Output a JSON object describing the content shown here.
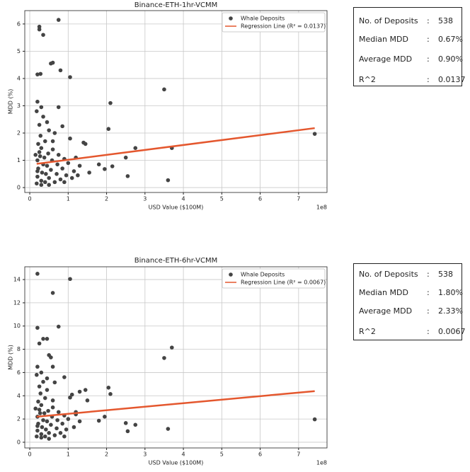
{
  "chart_data": [
    {
      "type": "scatter",
      "title": "Binance-ETH-1hr-VCMM",
      "xlabel": "USD Value ($100M)",
      "ylabel": "MDD (%)",
      "x_offset_label": "1e8",
      "xlim": [
        -0.13,
        7.74
      ],
      "ylim": [
        -0.18,
        6.49
      ],
      "xticks": [
        0,
        1,
        2,
        3,
        4,
        5,
        6,
        7
      ],
      "yticks": [
        0,
        1,
        2,
        3,
        4,
        5,
        6
      ],
      "grid": true,
      "legend": "upper right",
      "series": [
        {
          "name": "Whale Deposits",
          "kind": "scatter",
          "color": "#444444",
          "x": [
            0.75,
            0.25,
            0.25,
            0.35,
            0.55,
            0.6,
            0.8,
            1.05,
            0.2,
            0.28,
            3.5,
            0.2,
            2.1,
            0.3,
            0.75,
            2.05,
            0.5,
            0.85,
            0.65,
            1.4,
            1.45,
            1.05,
            2.5,
            2.75,
            3.7,
            7.42,
            3.6,
            2.55,
            2.15,
            1.95,
            1.8,
            1.25,
            1.55,
            1.1,
            0.18,
            0.2,
            0.22,
            0.2,
            0.25,
            0.22,
            0.28,
            0.3,
            0.32,
            0.35,
            0.38,
            0.3,
            0.4,
            0.42,
            0.45,
            0.48,
            0.4,
            0.5,
            0.55,
            0.58,
            0.6,
            0.65,
            0.7,
            0.72,
            0.75,
            0.8,
            0.85,
            0.9,
            0.95,
            1.0,
            0.25,
            0.35,
            0.45,
            0.18,
            0.6,
            0.3,
            0.5,
            0.2,
            0.27,
            0.15,
            1.2,
            1.3,
            1.15,
            0.9
          ],
          "values": [
            6.15,
            5.9,
            5.8,
            5.6,
            4.55,
            4.58,
            4.3,
            4.05,
            4.15,
            4.17,
            3.6,
            3.15,
            3.1,
            2.95,
            2.95,
            2.15,
            2.1,
            2.25,
            2.0,
            1.65,
            1.6,
            1.8,
            1.1,
            1.45,
            1.45,
            1.97,
            0.27,
            0.42,
            0.78,
            0.68,
            0.85,
            0.45,
            0.55,
            0.35,
            0.15,
            0.4,
            0.7,
            1.0,
            1.3,
            1.6,
            1.9,
            0.25,
            0.55,
            0.85,
            1.1,
            1.45,
            0.2,
            0.5,
            0.8,
            1.25,
            1.7,
            0.35,
            0.65,
            1.0,
            1.4,
            0.2,
            0.5,
            0.85,
            1.2,
            0.3,
            0.7,
            1.05,
            0.45,
            0.9,
            2.3,
            2.6,
            2.4,
            2.8,
            1.7,
            0.1,
            0.1,
            0.6,
            1.15,
            1.2,
            1.1,
            0.8,
            0.6,
            0.2
          ]
        },
        {
          "name": "Regression Line (R² = 0.0137)",
          "kind": "line",
          "color": "#e4572e",
          "x": [
            0.18,
            7.42
          ],
          "values": [
            0.87,
            2.18
          ]
        }
      ]
    },
    {
      "type": "scatter",
      "title": "Binance-ETH-6hr-VCMM",
      "xlabel": "USD Value ($100M)",
      "ylabel": "MDD (%)",
      "x_offset_label": "1e8",
      "xlim": [
        -0.13,
        7.74
      ],
      "ylim": [
        -0.49,
        15.1
      ],
      "xticks": [
        0,
        1,
        2,
        3,
        4,
        5,
        6,
        7
      ],
      "yticks": [
        0,
        2,
        4,
        6,
        8,
        10,
        12,
        14
      ],
      "grid": true,
      "legend": "upper right",
      "series": [
        {
          "name": "Whale Deposits",
          "kind": "scatter",
          "color": "#444444",
          "x": [
            0.2,
            1.05,
            0.6,
            0.2,
            0.75,
            3.7,
            3.5,
            0.25,
            0.35,
            0.45,
            0.5,
            0.55,
            0.6,
            0.2,
            0.3,
            0.9,
            0.45,
            0.65,
            2.05,
            2.1,
            1.45,
            1.3,
            1.1,
            1.5,
            1.95,
            1.8,
            2.5,
            2.75,
            3.6,
            2.55,
            7.42,
            1.2,
            1.05,
            0.18,
            0.2,
            0.22,
            0.2,
            0.25,
            0.22,
            0.28,
            0.3,
            0.32,
            0.35,
            0.38,
            0.3,
            0.4,
            0.42,
            0.45,
            0.48,
            0.4,
            0.5,
            0.55,
            0.58,
            0.6,
            0.65,
            0.7,
            0.72,
            0.75,
            0.8,
            0.85,
            0.9,
            0.95,
            1.0,
            0.25,
            0.35,
            0.45,
            0.18,
            0.6,
            0.3,
            0.5,
            0.2,
            0.27,
            0.15,
            1.2,
            1.3,
            1.15,
            0.9
          ],
          "values": [
            14.5,
            14.05,
            12.85,
            9.85,
            9.95,
            8.15,
            7.25,
            8.5,
            8.9,
            8.9,
            7.5,
            7.3,
            6.5,
            6.5,
            6.0,
            5.6,
            5.5,
            5.15,
            4.7,
            4.15,
            4.5,
            4.35,
            4.1,
            3.6,
            2.2,
            1.85,
            1.65,
            1.5,
            1.15,
            0.95,
            1.97,
            2.6,
            3.85,
            0.5,
            1.0,
            1.6,
            2.2,
            2.8,
            3.5,
            4.2,
            0.7,
            1.3,
            1.9,
            2.5,
            3.2,
            0.5,
            1.1,
            1.8,
            2.7,
            3.8,
            0.8,
            1.5,
            2.2,
            3.0,
            0.6,
            1.2,
            1.9,
            2.6,
            0.8,
            1.6,
            2.3,
            1.1,
            2.0,
            4.8,
            5.2,
            4.5,
            5.8,
            3.6,
            0.4,
            0.3,
            1.4,
            2.5,
            2.9,
            2.4,
            1.8,
            1.3,
            0.5
          ]
        },
        {
          "name": "Regression Line (R² = 0.0067)",
          "kind": "line",
          "color": "#e4572e",
          "x": [
            0.18,
            7.42
          ],
          "values": [
            2.2,
            4.4
          ]
        }
      ]
    }
  ],
  "separator": ":",
  "stat_boxes": [
    {
      "rows": [
        {
          "label": "No. of Deposits",
          "value": "538"
        },
        {
          "label": "Median MDD",
          "value": "0.67%"
        },
        {
          "label": "Average MDD",
          "value": "0.90%"
        },
        {
          "label": "R^2",
          "value": "0.0137"
        }
      ]
    },
    {
      "rows": [
        {
          "label": "No. of Deposits",
          "value": "538"
        },
        {
          "label": "Median MDD",
          "value": "1.80%"
        },
        {
          "label": "Average MDD",
          "value": "2.33%"
        },
        {
          "label": "R^2",
          "value": "0.0067"
        }
      ]
    }
  ]
}
